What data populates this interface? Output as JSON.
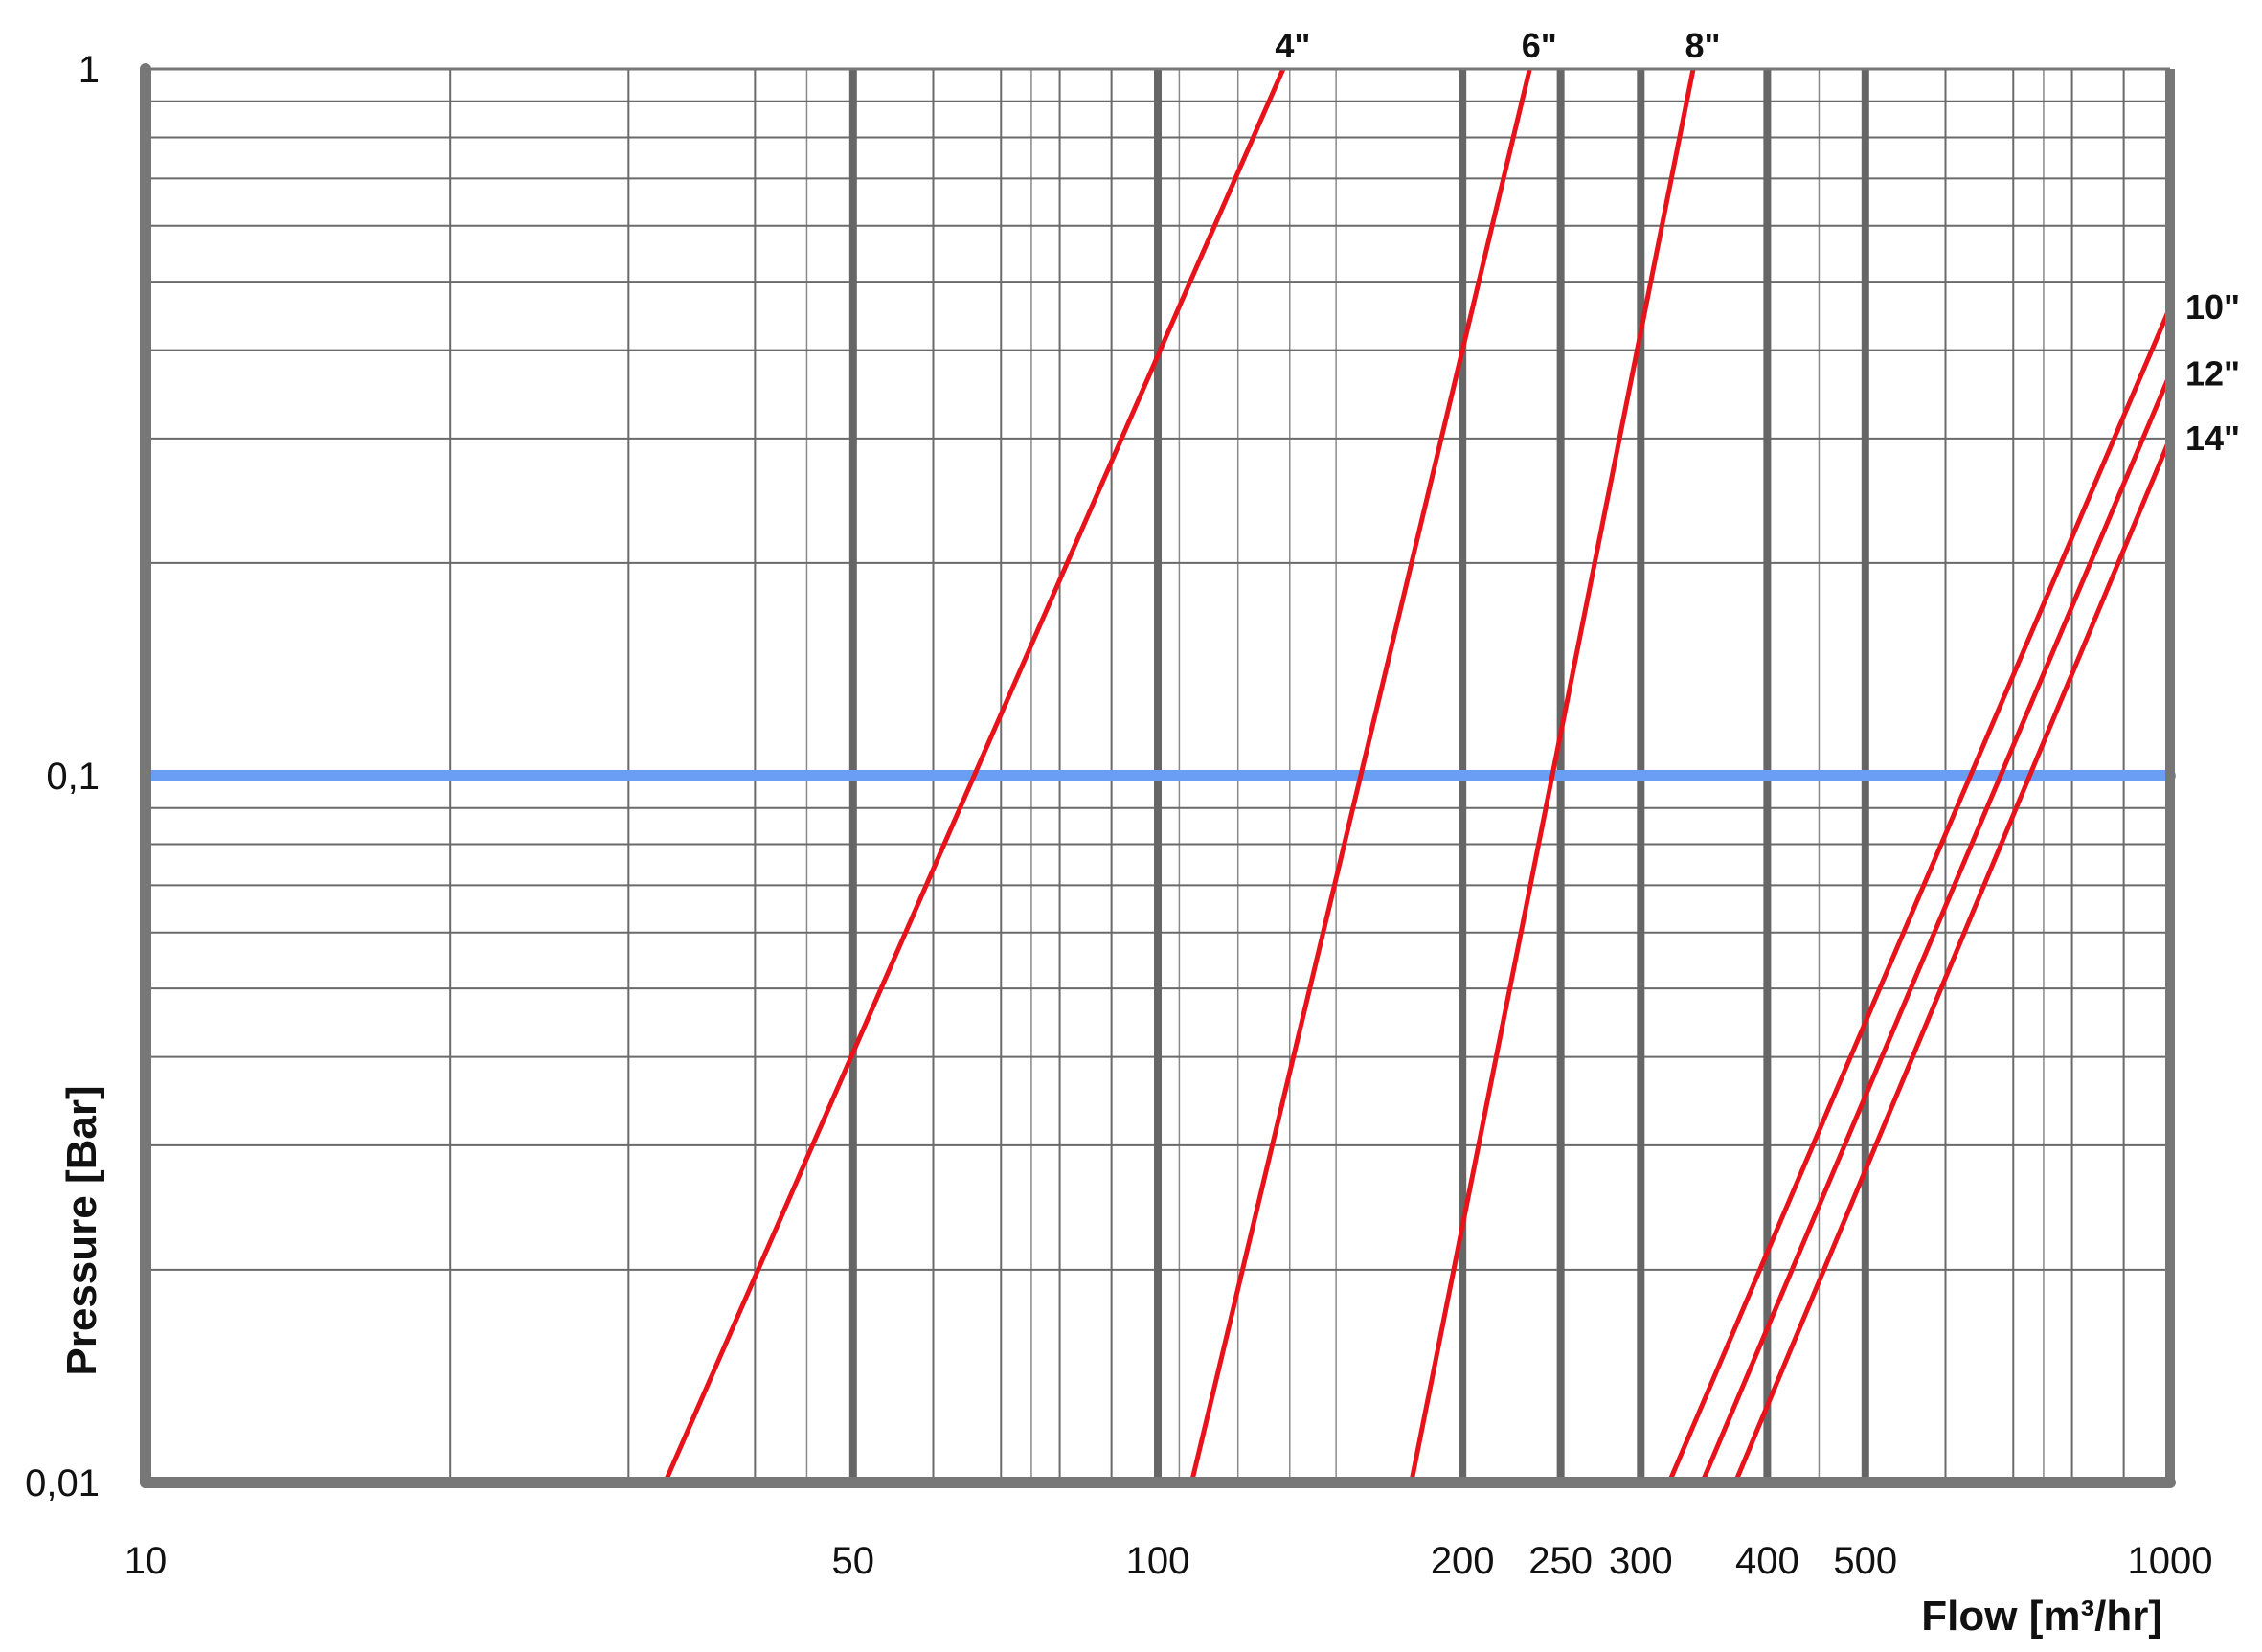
{
  "chart_data": {
    "type": "line",
    "title": "",
    "xlabel": "Flow [m³/hr]",
    "ylabel": "Pressure [Bar]",
    "x_scale": "log",
    "y_scale": "log",
    "xlim": [
      10,
      1000
    ],
    "ylim": [
      0.01,
      1
    ],
    "grid": true,
    "x_ticks": [
      10,
      50,
      100,
      200,
      250,
      300,
      400,
      500,
      1000
    ],
    "x_tick_labels": [
      "10",
      "50",
      "100",
      "200",
      "250",
      "300",
      "400",
      "500",
      "1000"
    ],
    "y_ticks": [
      0.01,
      0.1,
      1
    ],
    "y_tick_labels": [
      "0,01",
      "0,1",
      "1"
    ],
    "reference_line": {
      "y": 0.1,
      "color": "#6a9ef5"
    },
    "series_color": "#e8121a",
    "series": [
      {
        "name": "4\"",
        "points": [
          [
            32.6,
            0.01
          ],
          [
            133,
            1
          ]
        ]
      },
      {
        "name": "6\"",
        "points": [
          [
            108,
            0.01
          ],
          [
            233,
            1
          ]
        ]
      },
      {
        "name": "8\"",
        "points": [
          [
            178,
            0.01
          ],
          [
            338,
            1
          ]
        ]
      },
      {
        "name": "10\"",
        "points": [
          [
            320,
            0.01
          ],
          [
            1000,
            0.46
          ]
        ]
      },
      {
        "name": "12\"",
        "points": [
          [
            345,
            0.01
          ],
          [
            1000,
            0.37
          ]
        ]
      },
      {
        "name": "14\"",
        "points": [
          [
            372,
            0.01
          ],
          [
            1000,
            0.3
          ]
        ]
      }
    ]
  }
}
